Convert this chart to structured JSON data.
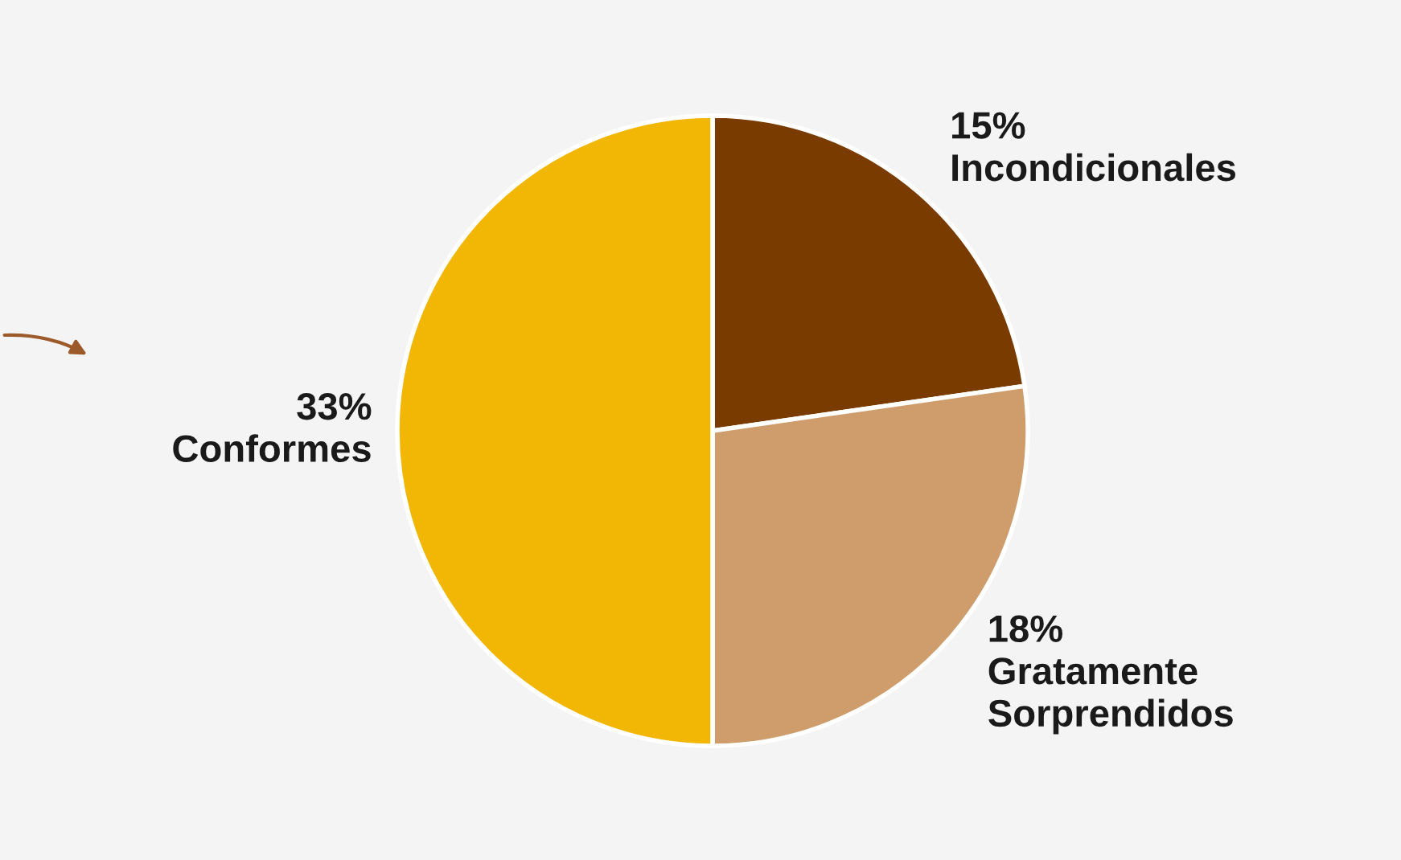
{
  "chart_data": {
    "type": "pie",
    "categories": [
      "Incondicionales",
      "Gratamente Sorprendidos",
      "Conformes"
    ],
    "values": [
      15,
      18,
      33
    ],
    "colors": [
      "#7a3b00",
      "#cf9d6c",
      "#f2b705"
    ],
    "value_labels": [
      "15%",
      "18%",
      "33%"
    ],
    "legend": false
  }
}
